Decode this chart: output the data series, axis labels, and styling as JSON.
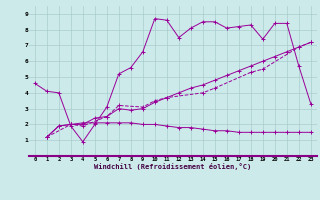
{
  "xlabel": "Windchill (Refroidissement éolien,°C)",
  "bg_color": "#cceaea",
  "grid_color": "#aacccc",
  "line_color": "#990099",
  "xlim": [
    -0.5,
    23.5
  ],
  "ylim": [
    0,
    9.5
  ],
  "xticks": [
    0,
    1,
    2,
    3,
    4,
    5,
    6,
    7,
    8,
    9,
    10,
    11,
    12,
    13,
    14,
    15,
    16,
    17,
    18,
    19,
    20,
    21,
    22,
    23
  ],
  "yticks": [
    1,
    2,
    3,
    4,
    5,
    6,
    7,
    8,
    9
  ],
  "line1_x": [
    0,
    1,
    2,
    3,
    4,
    5,
    6,
    7,
    8,
    9,
    10,
    11,
    12,
    13,
    14,
    15,
    16,
    17,
    18,
    19,
    20,
    21,
    22,
    23
  ],
  "line1_y": [
    4.6,
    4.1,
    4.0,
    1.9,
    0.9,
    2.0,
    3.1,
    5.2,
    5.6,
    6.6,
    8.7,
    8.6,
    7.5,
    8.1,
    8.5,
    8.5,
    8.1,
    8.2,
    8.3,
    7.4,
    8.4,
    8.4,
    5.7,
    3.3
  ],
  "line2_x": [
    1,
    2,
    3,
    4,
    5,
    6,
    7,
    8,
    9,
    10,
    11,
    12,
    13,
    14,
    15,
    16,
    17,
    18,
    19,
    20,
    21,
    22,
    23
  ],
  "line2_y": [
    1.2,
    1.9,
    2.0,
    2.0,
    2.4,
    2.5,
    3.0,
    2.9,
    3.0,
    3.4,
    3.7,
    4.0,
    4.3,
    4.5,
    4.8,
    5.1,
    5.4,
    5.7,
    6.0,
    6.3,
    6.6,
    6.9,
    7.2
  ],
  "line3_x": [
    1,
    3,
    4,
    6,
    7,
    9,
    10,
    11,
    14,
    15,
    18,
    19,
    22,
    23
  ],
  "line3_y": [
    1.2,
    2.0,
    1.9,
    2.5,
    3.2,
    3.1,
    3.5,
    3.7,
    4.0,
    4.3,
    5.3,
    5.5,
    6.9,
    7.2
  ],
  "line4_x": [
    1,
    2,
    3,
    4,
    5,
    6,
    7,
    8,
    9,
    10,
    11,
    12,
    13,
    14,
    15,
    16,
    17,
    18,
    19,
    20,
    21,
    22,
    23
  ],
  "line4_y": [
    1.2,
    1.9,
    2.0,
    2.1,
    2.1,
    2.1,
    2.1,
    2.1,
    2.0,
    2.0,
    1.9,
    1.8,
    1.8,
    1.7,
    1.6,
    1.6,
    1.5,
    1.5,
    1.5,
    1.5,
    1.5,
    1.5,
    1.5
  ]
}
